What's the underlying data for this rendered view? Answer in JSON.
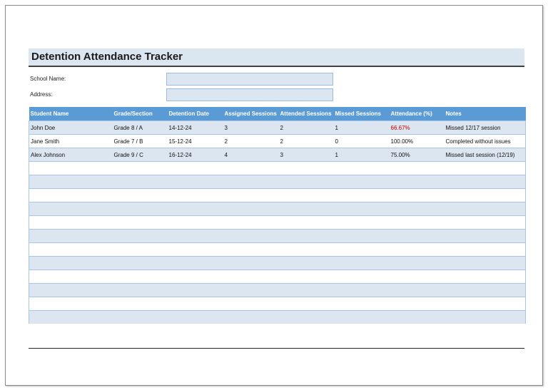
{
  "header": {
    "title": "Detention Attendance Tracker"
  },
  "fields": [
    {
      "label": "School Name:"
    },
    {
      "label": "Address:"
    }
  ],
  "table": {
    "columns": [
      "Student Name",
      "Grade/Section",
      "Detention Date",
      "Assigned Sessions",
      "Attended Sessions",
      "Missed Sessions",
      "Attendance (%)",
      "Notes"
    ],
    "rows": [
      [
        "John Doe",
        "Grade 8 / A",
        "14-12-24",
        "3",
        "2",
        "1",
        "66.67%",
        "Missed 12/17 session"
      ],
      [
        "Jane Smith",
        "Grade 7 / B",
        "15-12-24",
        "2",
        "2",
        "0",
        "100.00%",
        "Completed without issues"
      ],
      [
        "Alex Johnson",
        "Grade 9 / C",
        "16-12-24",
        "4",
        "3",
        "1",
        "75.00%",
        "Missed last session (12/19)"
      ]
    ]
  }
}
